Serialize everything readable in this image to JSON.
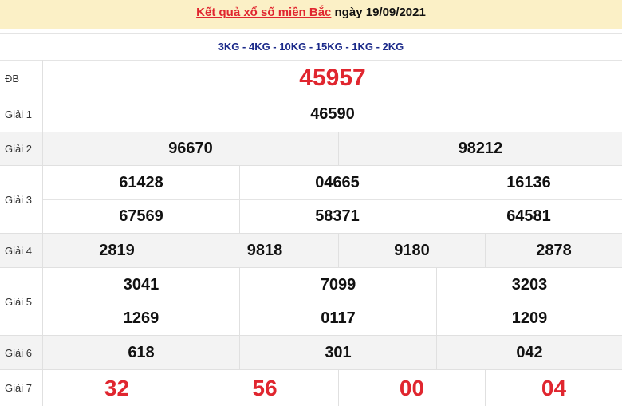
{
  "header": {
    "link": "Kết quả xổ số miền Bắc",
    "date_text": " ngày 19/09/2021"
  },
  "codes": "3KG - 4KG - 10KG - 15KG - 1KG - 2KG",
  "prizes": {
    "db": {
      "label": "ĐB",
      "values": [
        "45957"
      ]
    },
    "g1": {
      "label": "Giải 1",
      "values": [
        "46590"
      ]
    },
    "g2": {
      "label": "Giải 2",
      "values": [
        "96670",
        "98212"
      ]
    },
    "g3": {
      "label": "Giải 3",
      "values": [
        "61428",
        "04665",
        "16136",
        "67569",
        "58371",
        "64581"
      ]
    },
    "g4": {
      "label": "Giải 4",
      "values": [
        "2819",
        "9818",
        "9180",
        "2878"
      ]
    },
    "g5": {
      "label": "Giải 5",
      "values": [
        "3041",
        "7099",
        "3203",
        "1269",
        "0117",
        "1209"
      ]
    },
    "g6": {
      "label": "Giải 6",
      "values": [
        "618",
        "301",
        "042"
      ]
    },
    "g7": {
      "label": "Giải 7",
      "values": [
        "32",
        "56",
        "00",
        "04"
      ]
    }
  },
  "colors": {
    "red": "#e0262f",
    "blue": "#1b2a8a",
    "header_bg": "#fbf0c6"
  }
}
